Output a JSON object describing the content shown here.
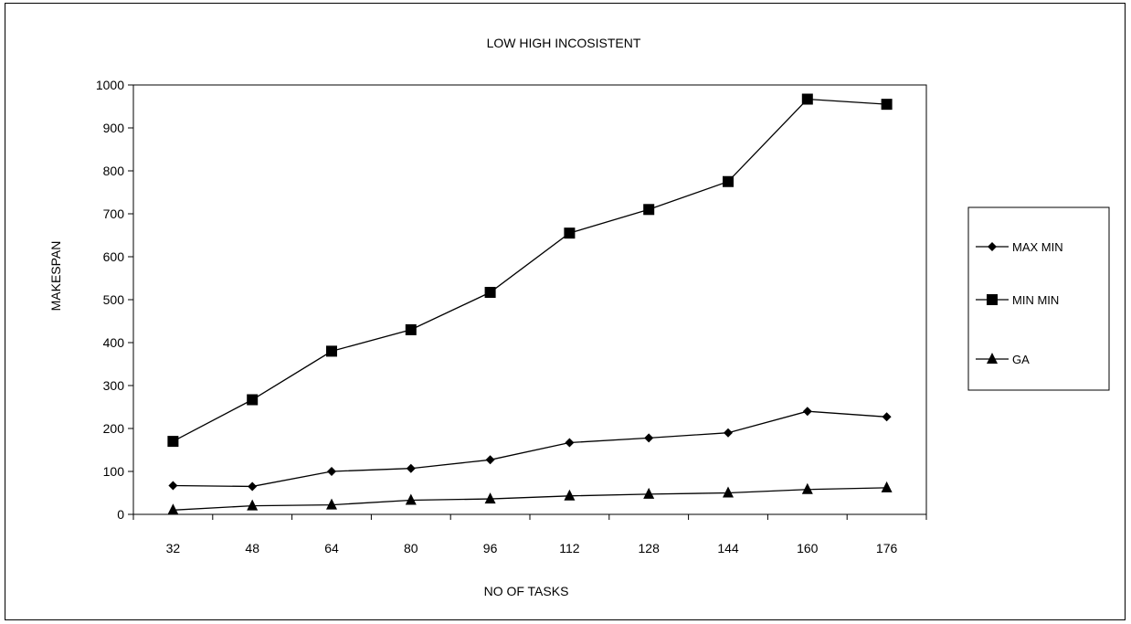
{
  "chart_data": {
    "type": "line",
    "title": "LOW HIGH INCOSISTENT",
    "xlabel": "NO OF TASKS",
    "ylabel": "MAKESPAN",
    "categories": [
      "32",
      "48",
      "64",
      "80",
      "96",
      "112",
      "128",
      "144",
      "160",
      "176"
    ],
    "ylim": [
      0,
      1000
    ],
    "yticks": [
      0,
      100,
      200,
      300,
      400,
      500,
      600,
      700,
      800,
      900,
      1000
    ],
    "grid": false,
    "legend_position": "right",
    "series": [
      {
        "name": "MAX MIN",
        "marker": "diamond",
        "values": [
          67,
          65,
          100,
          107,
          127,
          167,
          178,
          190,
          240,
          227
        ]
      },
      {
        "name": "MIN MIN",
        "marker": "square",
        "values": [
          170,
          267,
          380,
          430,
          517,
          655,
          710,
          775,
          967,
          955
        ]
      },
      {
        "name": "GA",
        "marker": "triangle",
        "values": [
          10,
          20,
          22,
          33,
          36,
          43,
          47,
          50,
          58,
          62
        ]
      }
    ]
  }
}
